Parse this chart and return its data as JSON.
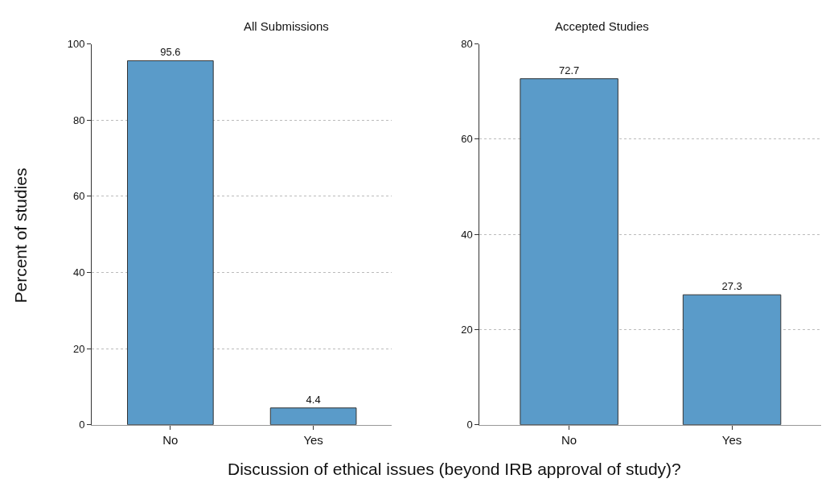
{
  "chart_data": [
    {
      "type": "bar",
      "title": "All Submissions",
      "ylabel": "Percent of studies",
      "xlabel": "Discussion of ethical issues (beyond IRB approval of study)?",
      "categories": [
        "No",
        "Yes"
      ],
      "values": [
        95.6,
        4.4
      ],
      "color": "#5a9bc9",
      "ylim": [
        0,
        100
      ],
      "yticks": [
        0,
        20,
        40,
        60,
        80,
        100
      ],
      "grid": "y",
      "data_labels": true
    },
    {
      "type": "bar",
      "title": "Accepted Studies",
      "categories": [
        "No",
        "Yes"
      ],
      "values": [
        72.7,
        27.3
      ],
      "color": "#5a9bc9",
      "ylim": [
        0,
        80
      ],
      "yticks": [
        0,
        20,
        40,
        60,
        80
      ],
      "grid": "y",
      "data_labels": true
    }
  ]
}
